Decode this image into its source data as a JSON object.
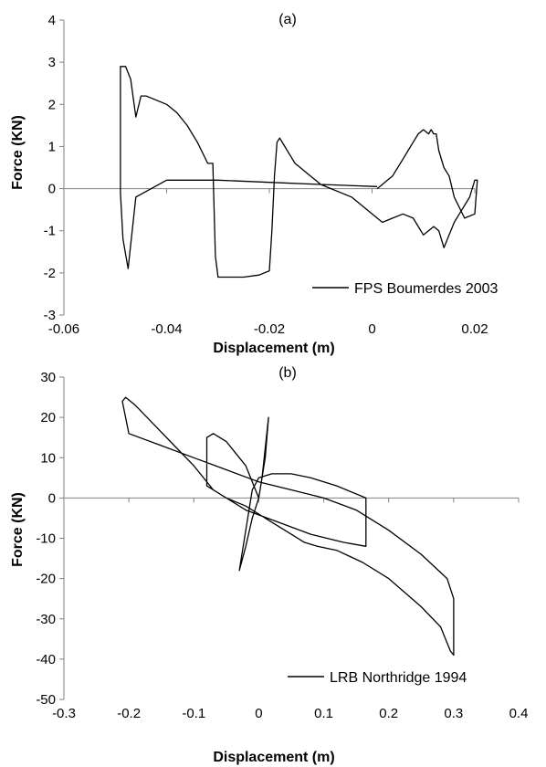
{
  "chart_data": [
    {
      "type": "line",
      "title": "(a)",
      "xlabel": "Displacement (m)",
      "ylabel": "Force (KN)",
      "xlim": [
        -0.06,
        0.02
      ],
      "ylim": [
        -3,
        4
      ],
      "xticks": [
        -0.06,
        -0.04,
        -0.02,
        0,
        0.02
      ],
      "xtick_labels": [
        "-0.06",
        "-0.04",
        "-0.02",
        "0",
        "0.02"
      ],
      "yticks": [
        -3,
        -2,
        -1,
        0,
        1,
        2,
        3,
        4
      ],
      "ytick_labels": [
        "-3",
        "-2",
        "-1",
        "0",
        "1",
        "2",
        "3",
        "4"
      ],
      "grid": false,
      "legend_position": "bottom-right",
      "series": [
        {
          "name": "FPS Boumerdes 2003",
          "color": "#000000",
          "x": [
            0.001,
            -0.01,
            -0.02,
            -0.03,
            -0.04,
            -0.046,
            -0.0475,
            -0.0485,
            -0.049,
            -0.049,
            -0.048,
            -0.047,
            -0.046,
            -0.045,
            -0.044,
            -0.042,
            -0.04,
            -0.038,
            -0.036,
            -0.034,
            -0.032,
            -0.031,
            -0.0305,
            -0.03,
            -0.028,
            -0.025,
            -0.022,
            -0.02,
            -0.0195,
            -0.019,
            -0.0185,
            -0.018,
            -0.017,
            -0.016,
            -0.015,
            -0.014,
            -0.013,
            -0.012,
            -0.011,
            -0.01,
            -0.008,
            -0.006,
            -0.004,
            -0.002,
            0.0,
            0.002,
            0.004,
            0.006,
            0.008,
            0.01,
            0.011,
            0.012,
            0.013,
            0.014,
            0.015,
            0.016,
            0.017,
            0.018,
            0.019,
            0.02,
            0.0205,
            0.02,
            0.018,
            0.016,
            0.015,
            0.014,
            0.013,
            0.0125,
            0.012,
            0.0115,
            0.011,
            0.01,
            0.009,
            0.008,
            0.007,
            0.006,
            0.005,
            0.004,
            0.003,
            0.002,
            0.001
          ],
          "y": [
            0.05,
            0.1,
            0.15,
            0.2,
            0.2,
            -0.2,
            -1.9,
            -1.2,
            -0.1,
            2.9,
            2.9,
            2.6,
            1.7,
            2.2,
            2.2,
            2.1,
            2.0,
            1.8,
            1.5,
            1.1,
            0.6,
            0.6,
            -1.6,
            -2.1,
            -2.1,
            -2.1,
            -2.05,
            -1.95,
            -1.0,
            0.3,
            1.1,
            1.2,
            1.0,
            0.8,
            0.6,
            0.5,
            0.4,
            0.3,
            0.2,
            0.1,
            0.0,
            -0.1,
            -0.2,
            -0.4,
            -0.6,
            -0.8,
            -0.7,
            -0.6,
            -0.7,
            -1.1,
            -1.0,
            -0.9,
            -1.0,
            -1.4,
            -1.1,
            -0.8,
            -0.6,
            -0.4,
            -0.2,
            0.2,
            0.2,
            -0.6,
            -0.7,
            -0.2,
            0.3,
            0.5,
            0.9,
            1.3,
            1.3,
            1.4,
            1.3,
            1.4,
            1.3,
            1.1,
            0.9,
            0.7,
            0.5,
            0.3,
            0.2,
            0.1,
            0.0
          ]
        }
      ]
    },
    {
      "type": "line",
      "title": "(b)",
      "xlabel": "Displacement (m)",
      "ylabel": "Force (KN)",
      "xlim": [
        -0.3,
        0.4
      ],
      "ylim": [
        -50,
        30
      ],
      "xticks": [
        -0.3,
        -0.2,
        -0.1,
        0,
        0.1,
        0.2,
        0.3,
        0.4
      ],
      "xtick_labels": [
        "-0.3",
        "-0.2",
        "-0.1",
        "0",
        "0.1",
        "0.2",
        "0.3",
        "0.4"
      ],
      "yticks": [
        -50,
        -40,
        -30,
        -20,
        -10,
        0,
        10,
        20,
        30
      ],
      "ytick_labels": [
        "-50",
        "-40",
        "-30",
        "-20",
        "-10",
        "0",
        "10",
        "20",
        "30"
      ],
      "grid": false,
      "legend_position": "bottom-right",
      "series": [
        {
          "name": "LRB Northridge 1994",
          "color": "#000000",
          "x": [
            0.0,
            0.01,
            0.015,
            0.005,
            0.0,
            -0.01,
            -0.02,
            -0.03,
            -0.02,
            -0.01,
            0.0,
            0.02,
            0.05,
            0.08,
            0.12,
            0.165,
            0.165,
            0.13,
            0.08,
            0.03,
            -0.02,
            -0.07,
            -0.1,
            -0.13,
            -0.16,
            -0.19,
            -0.205,
            -0.21,
            -0.2,
            -0.15,
            -0.1,
            -0.05,
            0.0,
            0.05,
            0.1,
            0.15,
            0.2,
            0.25,
            0.29,
            0.3,
            0.3,
            0.295,
            0.28,
            0.25,
            0.2,
            0.16,
            0.12,
            0.09,
            0.07,
            0.05,
            0.02,
            0.0,
            -0.02,
            -0.05,
            -0.08,
            -0.08,
            -0.07,
            -0.05,
            -0.02,
            0.0
          ],
          "y": [
            0.0,
            10.0,
            20.0,
            5.0,
            0.0,
            -5.0,
            -12.0,
            -18.0,
            -8.0,
            2.0,
            5.0,
            6.0,
            6.0,
            5.0,
            3.0,
            0.0,
            -12.0,
            -11.0,
            -9.0,
            -6.0,
            -3.0,
            2.0,
            8.0,
            13.0,
            18.0,
            23.0,
            25.0,
            24.0,
            16.0,
            13.0,
            10.0,
            7.0,
            4.0,
            2.0,
            0.0,
            -3.0,
            -8.0,
            -14.0,
            -20.0,
            -25.0,
            -39.0,
            -38.0,
            -32.0,
            -27.0,
            -20.0,
            -16.0,
            -13.0,
            -12.0,
            -11.0,
            -9.0,
            -6.0,
            -4.0,
            -2.0,
            0.0,
            3.0,
            15.0,
            16.0,
            14.0,
            8.0,
            0.0
          ]
        }
      ]
    }
  ]
}
